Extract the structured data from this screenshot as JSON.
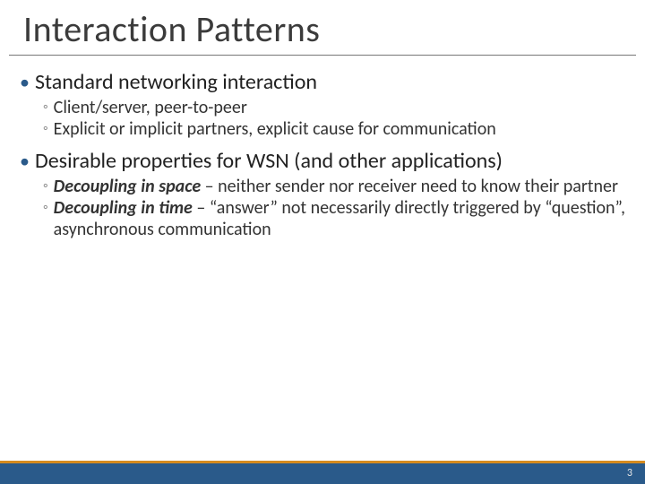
{
  "title": "Interaction Patterns",
  "colors": {
    "title_color": "#3b3b3b",
    "bullet_color": "#2a5a8a",
    "ring_color": "#888888",
    "text_color": "#222222",
    "subtext_color": "#333333",
    "footer_bg": "#2a5a8a",
    "footer_accent": "#d68b1f",
    "page_bg": "#ffffff"
  },
  "typography": {
    "title_fontsize": 40,
    "lvl1_fontsize": 24,
    "lvl2_fontsize": 20,
    "pagenum_fontsize": 12
  },
  "bullets": [
    {
      "text": "Standard networking interaction",
      "sub": [
        {
          "plain": "Client/server, peer-to-peer"
        },
        {
          "plain": "Explicit or implicit partners, explicit cause for communication"
        }
      ]
    },
    {
      "text": "Desirable properties for WSN (and other applications)",
      "sub": [
        {
          "em": "Decoupling in space",
          "rest": " – neither sender nor receiver need to know their partner"
        },
        {
          "em": "Decoupling in time",
          "rest": " – “answer” not necessarily directly triggered by “question”, asynchronous communication"
        }
      ]
    }
  ],
  "page_number": "3"
}
